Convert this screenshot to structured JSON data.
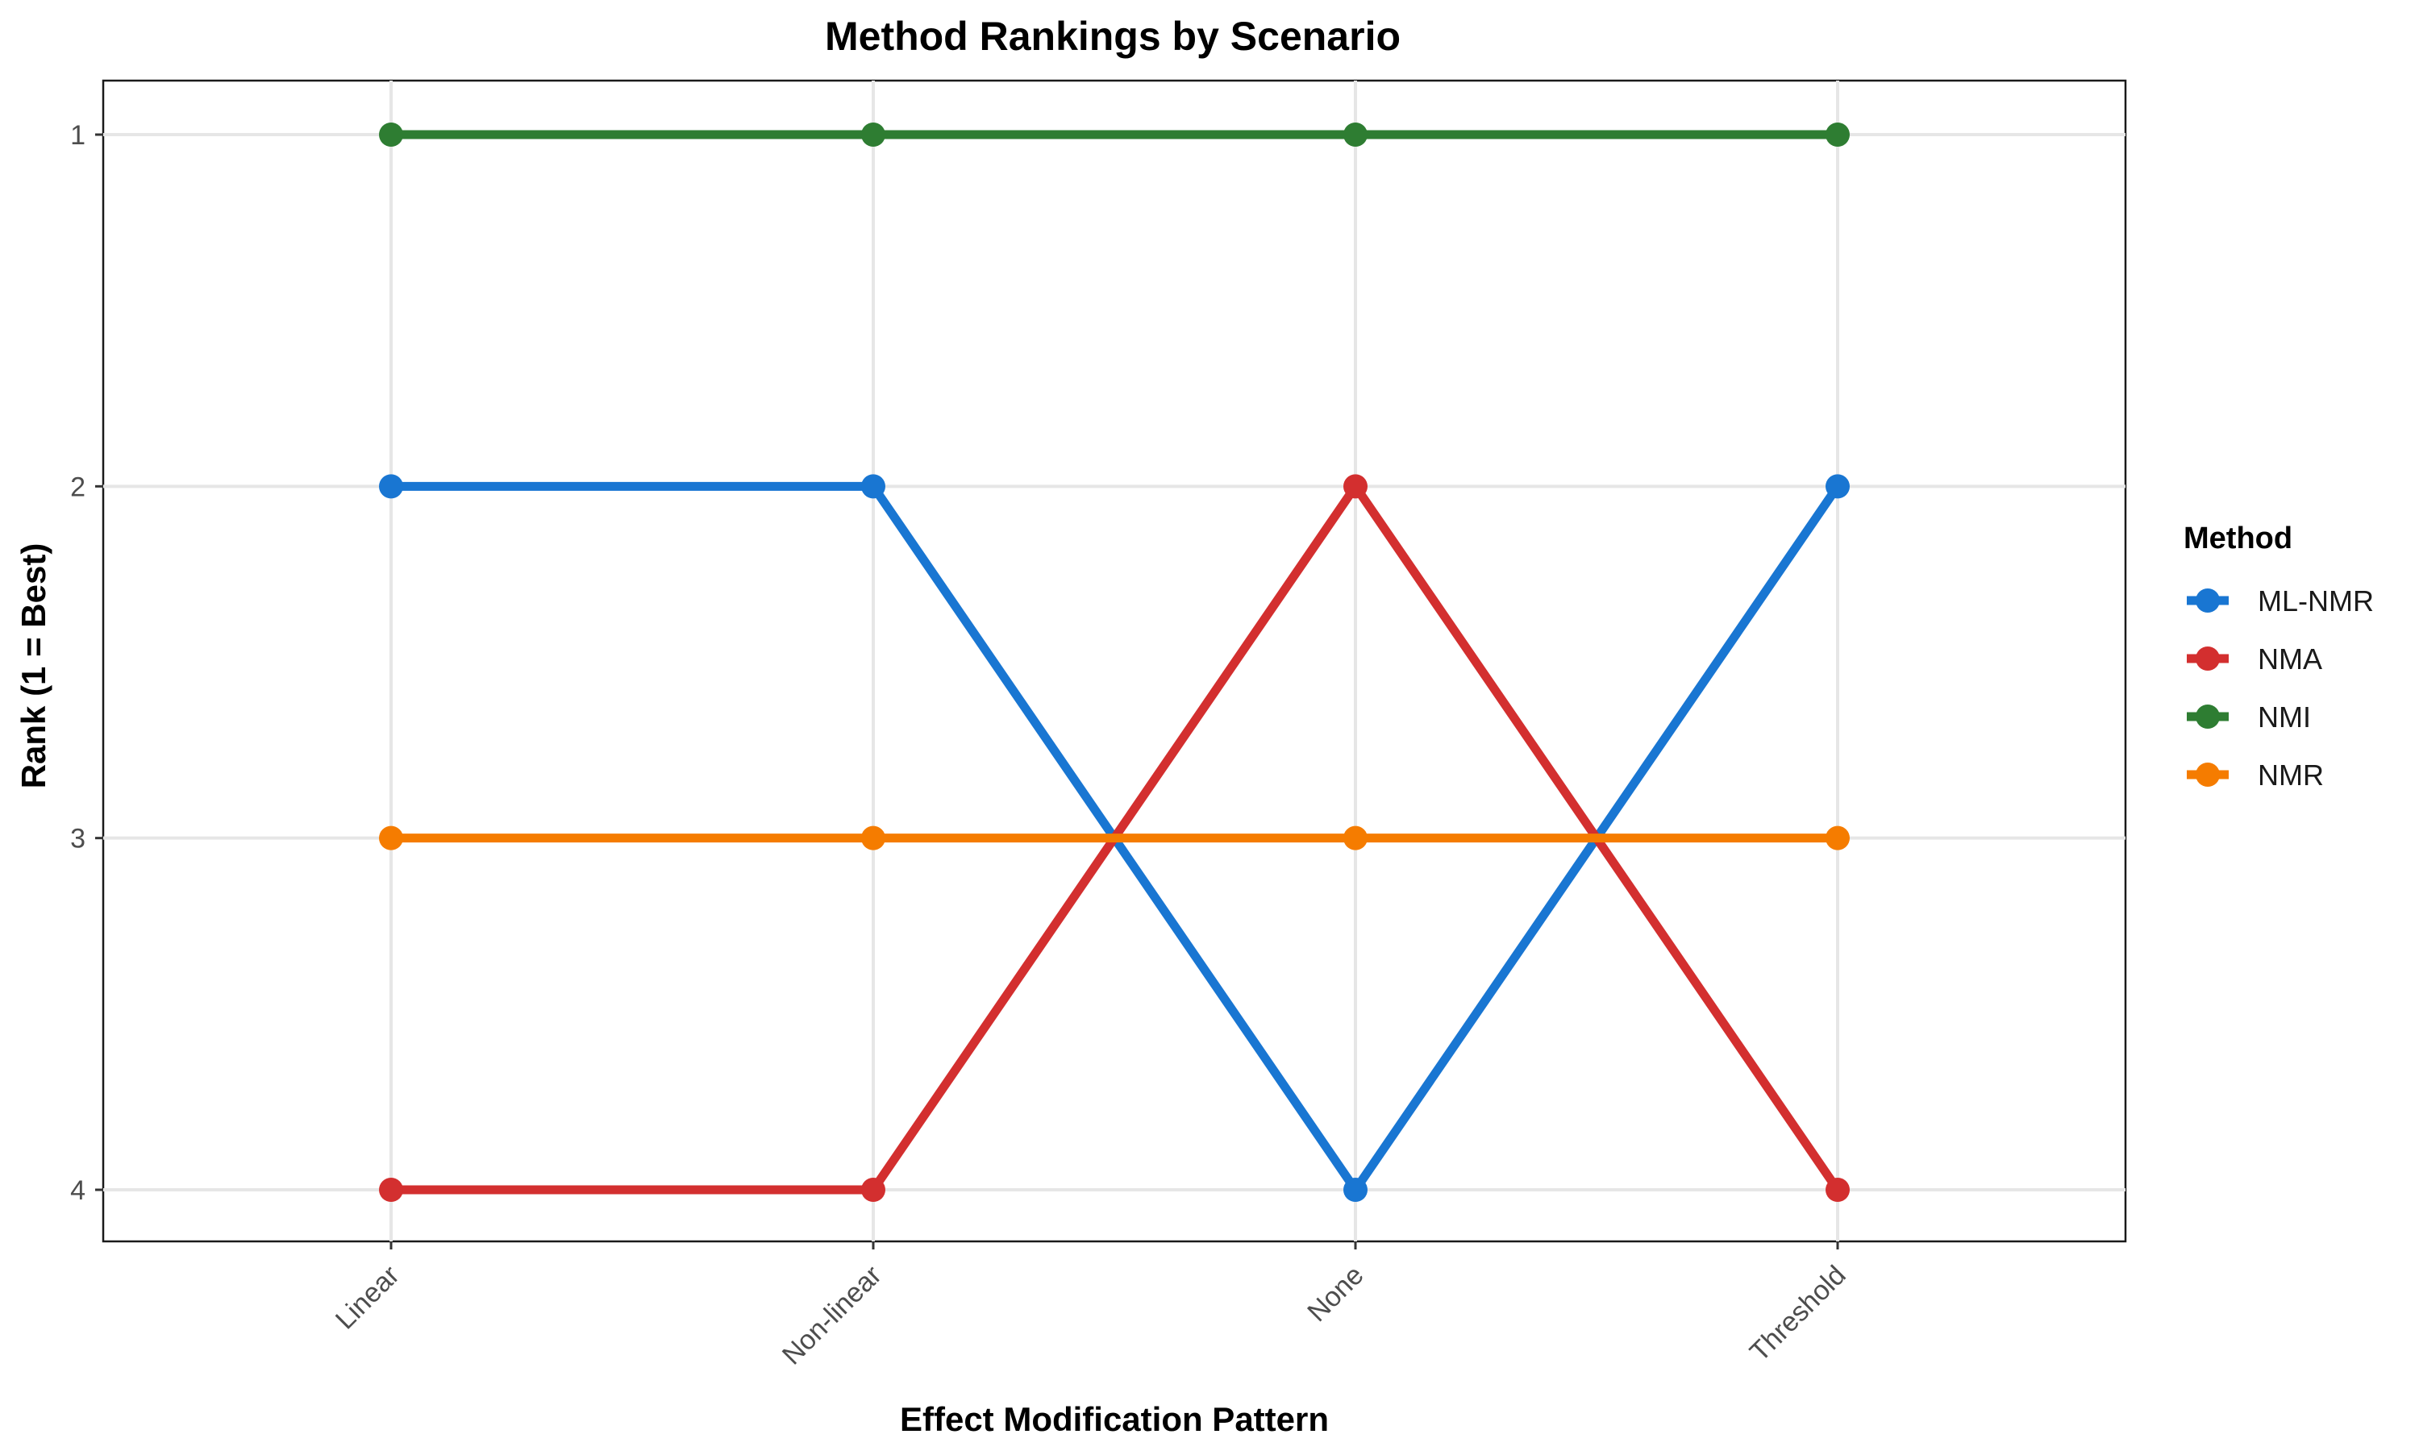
{
  "chart_data": {
    "type": "line",
    "title": "Method Rankings by Scenario",
    "xlabel": "Effect Modification Pattern",
    "ylabel": "Rank (1 = Best)",
    "categories": [
      "Linear",
      "Non-linear",
      "None",
      "Threshold"
    ],
    "y_ticks": [
      1,
      2,
      3,
      4
    ],
    "ylim": [
      1,
      4
    ],
    "y_reversed": true,
    "grid": true,
    "legend_position": "right",
    "legend_title": "Method",
    "series": [
      {
        "name": "ML-NMR",
        "color": "#1976D2",
        "values": [
          2,
          2,
          4,
          2
        ]
      },
      {
        "name": "NMA",
        "color": "#D32F2F",
        "values": [
          4,
          4,
          2,
          4
        ]
      },
      {
        "name": "NMI",
        "color": "#2E7D32",
        "values": [
          1,
          1,
          1,
          1
        ]
      },
      {
        "name": "NMR",
        "color": "#F57C00",
        "values": [
          3,
          3,
          3,
          3
        ]
      }
    ]
  }
}
